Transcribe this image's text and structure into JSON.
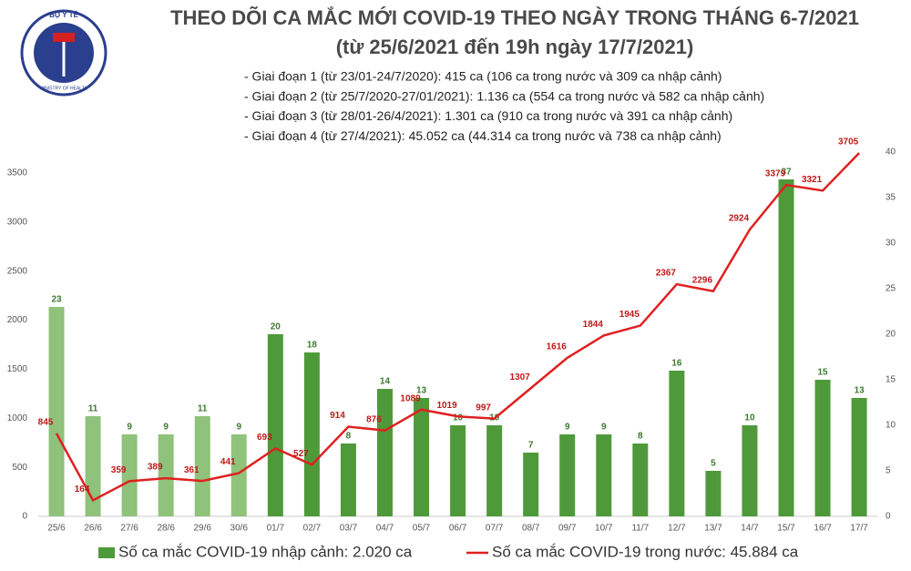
{
  "chart_data": {
    "type": "combo",
    "logo": {
      "top": "BỘ Y TẾ",
      "bottom": "MINISTRY OF HEALTH"
    },
    "title": "THEO DÕI CA MẮC MỚI COVID-19 THEO NGÀY TRONG THÁNG 6-7/2021",
    "subtitle": "(từ 25/6/2021 đến 19h ngày 17/7/2021)",
    "notes": [
      "- Giai đoạn 1 (từ 23/01-24/7/2020): 415 ca (106 ca trong nước và 309 ca nhập cảnh)",
      "- Giai đoạn 2 (từ 25/7/2020-27/01/2021): 1.136 ca (554 ca trong nước và 582 ca nhập cảnh)",
      "- Giai đoạn 3 (từ 28/01-26/4/2021): 1.301 ca (910 ca trong nước và 391 ca nhập cảnh)",
      "- Giai đoạn 4 (từ 27/4/2021): 45.052 ca (44.314 ca trong nước và 738 ca nhập cảnh)"
    ],
    "categories": [
      "25/6",
      "26/6",
      "27/6",
      "28/6",
      "29/6",
      "30/6",
      "01/7",
      "02/7",
      "03/7",
      "04/7",
      "05/7",
      "06/7",
      "07/7",
      "08/7",
      "09/7",
      "10/7",
      "11/7",
      "12/7",
      "13/7",
      "14/7",
      "15/7",
      "16/7",
      "17/7"
    ],
    "series": [
      {
        "name": "Số ca mắc COVID-19 nhập cảnh: 2.020 ca",
        "type": "bar",
        "axis": "y2",
        "color": "#4e9a3a",
        "colors": [
          "#8fc27a",
          "#8fc27a",
          "#8fc27a",
          "#8fc27a",
          "#8fc27a",
          "#8fc27a",
          "#4e9a3a",
          "#4e9a3a",
          "#4e9a3a",
          "#4e9a3a",
          "#4e9a3a",
          "#4e9a3a",
          "#4e9a3a",
          "#4e9a3a",
          "#4e9a3a",
          "#4e9a3a",
          "#4e9a3a",
          "#4e9a3a",
          "#4e9a3a",
          "#4e9a3a",
          "#4e9a3a",
          "#4e9a3a",
          "#4e9a3a"
        ],
        "values": [
          23,
          11,
          9,
          9,
          11,
          9,
          20,
          18,
          8,
          14,
          13,
          10,
          10,
          7,
          9,
          9,
          8,
          16,
          5,
          10,
          37,
          15,
          13
        ]
      },
      {
        "name": "Số ca mắc COVID-19 trong nước: 45.884 ca",
        "type": "line",
        "color": "#e02020",
        "values": [
          845,
          164,
          359,
          389,
          361,
          441,
          693,
          527,
          914,
          876,
          1089,
          1019,
          997,
          1307,
          1616,
          1844,
          1945,
          2367,
          2296,
          2924,
          3379,
          3321,
          3705
        ]
      }
    ],
    "ylim": [
      0,
      3714
    ],
    "yticks": [
      0,
      500,
      1000,
      1500,
      2000,
      2500,
      3000,
      3500
    ],
    "y2lim": [
      0,
      40
    ],
    "y2ticks": [
      0,
      5,
      10,
      15,
      20,
      25,
      30,
      35,
      40
    ]
  }
}
